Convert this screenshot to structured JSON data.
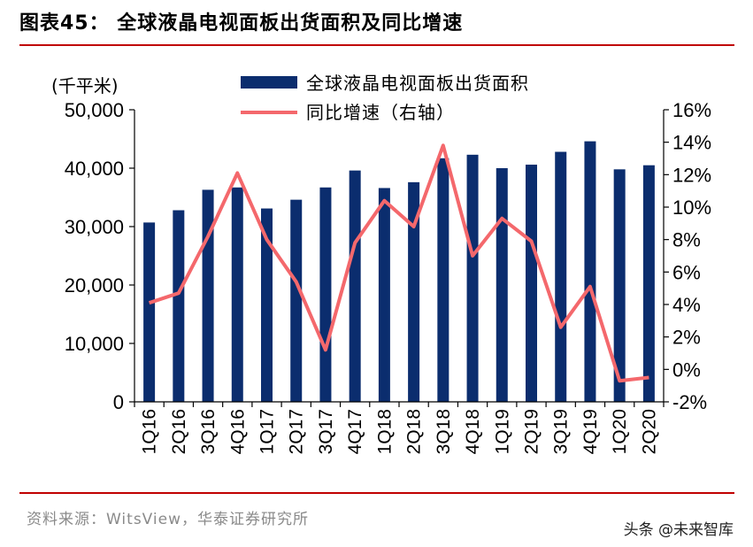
{
  "title": "图表45：  全球液晶电视面板出货面积及同比增速",
  "source": "资料来源：WitsView，华泰证券研究所",
  "watermark": "头条 @未来智库",
  "colors": {
    "bar": "#0b2d6e",
    "line": "#f4686c",
    "rule": "#c00000"
  },
  "chart_data": {
    "type": "bar+line",
    "categories": [
      "1Q16",
      "2Q16",
      "3Q16",
      "4Q16",
      "1Q17",
      "2Q17",
      "3Q17",
      "4Q17",
      "1Q18",
      "2Q18",
      "3Q18",
      "4Q18",
      "1Q19",
      "2Q19",
      "3Q19",
      "4Q19",
      "1Q20",
      "2Q20"
    ],
    "series": [
      {
        "name": "全球液晶电视面板出货面积",
        "type": "bar",
        "axis": "left",
        "values": [
          30700,
          32800,
          36300,
          36700,
          33100,
          34600,
          36700,
          39600,
          36600,
          37600,
          41700,
          42300,
          40000,
          40600,
          42800,
          44600,
          39800,
          40500
        ]
      },
      {
        "name": "同比增速（右轴）",
        "type": "line",
        "axis": "right",
        "values": [
          4.1,
          4.7,
          8.2,
          12.1,
          8.0,
          5.4,
          1.2,
          7.8,
          10.4,
          8.8,
          13.8,
          7.0,
          9.3,
          7.9,
          2.6,
          5.1,
          -0.7,
          -0.5
        ]
      }
    ],
    "left_axis": {
      "unit": "(千平米)",
      "range": [
        0,
        50000
      ],
      "ticks": [
        "0",
        "10,000",
        "20,000",
        "30,000",
        "40,000",
        "50,000"
      ]
    },
    "right_axis": {
      "range": [
        -2,
        16
      ],
      "ticks": [
        "-2%",
        "0%",
        "2%",
        "4%",
        "6%",
        "8%",
        "10%",
        "12%",
        "14%",
        "16%"
      ]
    },
    "legend_position": "top-right"
  }
}
